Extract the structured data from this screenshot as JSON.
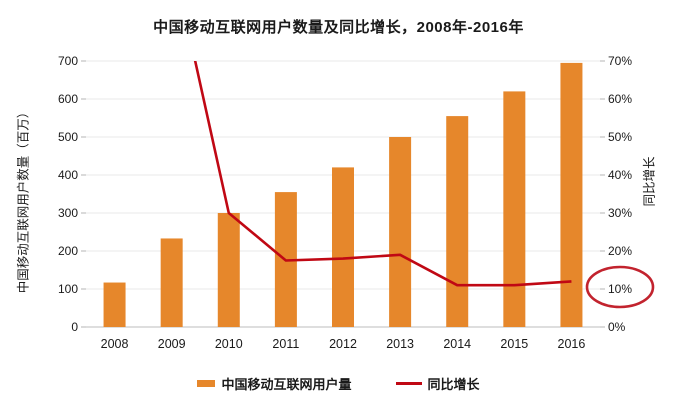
{
  "title": "中国移动互联网用户数量及同比增长，2008年-2016年",
  "colors": {
    "bar": "#E6872B",
    "line": "#C00814",
    "annotation": "#C2232E",
    "grid": "#E9E9E9",
    "axis_line": "#C9C9C9",
    "tick": "#B5B5B5",
    "text": "#1A1A1A",
    "background": "#FFFFFF"
  },
  "chart_data": {
    "type": "bar",
    "subtype": "bar-plus-line-dual-axis",
    "title": "中国移动互联网用户数量及同比增长，2008年-2016年",
    "categories": [
      "2008",
      "2009",
      "2010",
      "2011",
      "2012",
      "2013",
      "2014",
      "2015",
      "2016"
    ],
    "series": [
      {
        "name": "中国移动互联网用户量",
        "type": "bar",
        "axis": "left",
        "unit": "百万",
        "values": [
          117,
          233,
          300,
          355,
          420,
          500,
          555,
          620,
          695
        ]
      },
      {
        "name": "同比增长",
        "type": "line",
        "axis": "right",
        "unit": "%",
        "values": [
          null,
          98,
          30,
          17.5,
          18,
          19,
          11,
          11,
          12
        ],
        "note": "2009 value is above axis max and the line is clipped at the top of the plot"
      }
    ],
    "left_axis": {
      "title": "中国移动互联网用户数量（百万）",
      "min": 0,
      "max": 700,
      "step": 100,
      "tick_labels": [
        "0",
        "100",
        "200",
        "300",
        "400",
        "500",
        "600",
        "700"
      ]
    },
    "right_axis": {
      "title": "同比增长",
      "min": 0,
      "max": 70,
      "step": 10,
      "tick_labels": [
        "0%",
        "10%",
        "20%",
        "30%",
        "40%",
        "50%",
        "60%",
        "70%"
      ]
    },
    "grid": "horizontal",
    "legend_position": "bottom",
    "annotation": {
      "type": "ellipse",
      "target": "right-axis 10% tick label"
    }
  },
  "legend": [
    {
      "label": "中国移动互联网用户量",
      "swatch": "bar"
    },
    {
      "label": "同比增长",
      "swatch": "line"
    }
  ]
}
